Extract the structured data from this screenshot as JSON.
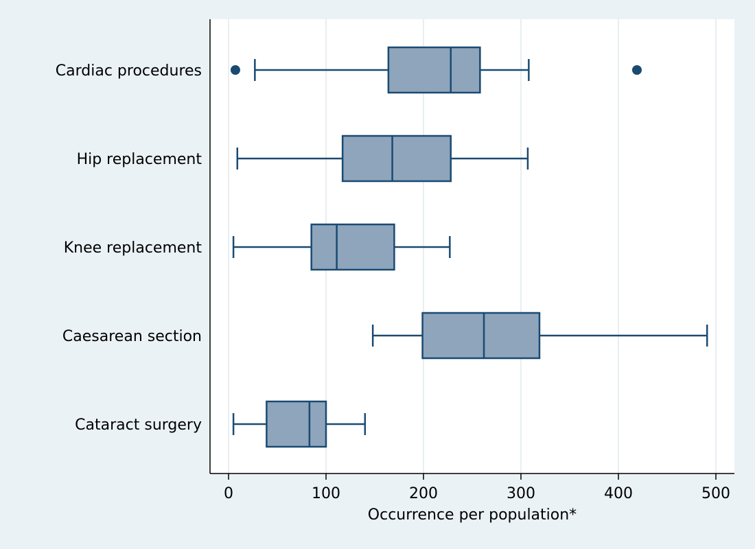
{
  "chart_data": {
    "type": "boxplot",
    "orientation": "horizontal",
    "xlabel": "Occurrence per population*",
    "xlim": [
      -18,
      520
    ],
    "xticks": [
      0,
      100,
      200,
      300,
      400,
      500
    ],
    "grid": "vertical",
    "categories": [
      "Cardiac procedures",
      "Hip replacement",
      "Knee replacement",
      "Caesarean section",
      "Cataract surgery"
    ],
    "boxes": [
      {
        "category": "Cardiac procedures",
        "whisker_low": 27,
        "q1": 164,
        "median": 228,
        "q3": 258,
        "whisker_high": 308,
        "outliers": [
          7,
          419
        ]
      },
      {
        "category": "Hip replacement",
        "whisker_low": 9,
        "q1": 117,
        "median": 168,
        "q3": 228,
        "whisker_high": 307,
        "outliers": []
      },
      {
        "category": "Knee replacement",
        "whisker_low": 5,
        "q1": 85,
        "median": 111,
        "q3": 170,
        "whisker_high": 227,
        "outliers": []
      },
      {
        "category": "Caesarean section",
        "whisker_low": 148,
        "q1": 199,
        "median": 262,
        "q3": 319,
        "whisker_high": 491,
        "outliers": []
      },
      {
        "category": "Cataract surgery",
        "whisker_low": 5,
        "q1": 39,
        "median": 83,
        "q3": 100,
        "whisker_high": 140,
        "outliers": []
      }
    ],
    "colors": {
      "box_fill": "#8ea5bc",
      "line": "#1a4a72",
      "outlier": "#1a4a72",
      "plot_background": "#ffffff",
      "outer_background": "#ebf2f6",
      "grid": "#e8eef2",
      "axis": "#000000"
    }
  }
}
